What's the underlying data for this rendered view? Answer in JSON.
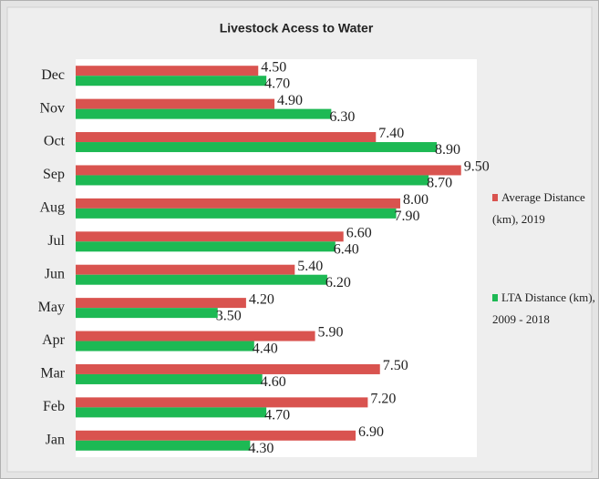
{
  "chart_data": {
    "type": "hbar",
    "title": "Livestock Acess to Water",
    "categories": [
      "Jan",
      "Feb",
      "Mar",
      "Apr",
      "May",
      "Jun",
      "Jul",
      "Aug",
      "Sep",
      "Oct",
      "Nov",
      "Dec"
    ],
    "series": [
      {
        "name": "Average Distance (km), 2019",
        "color": "#d9534f",
        "values": [
          6.9,
          7.2,
          7.5,
          5.9,
          4.2,
          5.4,
          6.6,
          8.0,
          9.5,
          7.4,
          4.9,
          4.5
        ],
        "value_labels": [
          "6.90",
          "7.20",
          "7.50",
          "5.90",
          "4.20",
          "5.40",
          "6.60",
          "8.00",
          "9.50",
          "7.40",
          "4.90",
          "4.50"
        ]
      },
      {
        "name": "LTA Distance (km), 2009 - 2018",
        "color": "#1db954",
        "values": [
          4.3,
          4.7,
          4.6,
          4.4,
          3.5,
          6.2,
          6.4,
          7.9,
          8.7,
          8.9,
          6.3,
          4.7
        ],
        "value_labels": [
          "4.30",
          "4.70",
          "4.60",
          "4.40",
          "3.50",
          "6.20",
          "6.40",
          "7.90",
          "8.70",
          "8.90",
          "6.30",
          "4.70"
        ]
      }
    ]
  }
}
